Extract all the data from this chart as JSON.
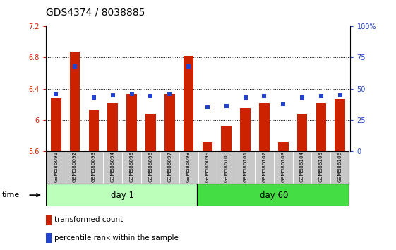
{
  "title": "GDS4374 / 8038885",
  "samples": [
    "GSM586091",
    "GSM586092",
    "GSM586093",
    "GSM586094",
    "GSM586095",
    "GSM586096",
    "GSM586097",
    "GSM586098",
    "GSM586099",
    "GSM586100",
    "GSM586101",
    "GSM586102",
    "GSM586103",
    "GSM586104",
    "GSM586105",
    "GSM586106"
  ],
  "transformed_count": [
    6.28,
    6.88,
    6.13,
    6.22,
    6.33,
    6.08,
    6.33,
    6.82,
    5.72,
    5.93,
    6.15,
    6.22,
    5.72,
    6.08,
    6.22,
    6.27
  ],
  "percentile_rank": [
    46,
    68,
    43,
    45,
    46,
    44,
    46,
    68,
    35,
    36,
    43,
    44,
    38,
    43,
    44,
    45
  ],
  "ylim_left": [
    5.6,
    7.2
  ],
  "ylim_right": [
    0,
    100
  ],
  "yticks_left": [
    5.6,
    6.0,
    6.4,
    6.8,
    7.2
  ],
  "ytick_labels_left": [
    "5.6",
    "6",
    "6.4",
    "6.8",
    "7.2"
  ],
  "yticks_right": [
    0,
    25,
    50,
    75,
    100
  ],
  "ytick_labels_right": [
    "0",
    "25",
    "50",
    "75",
    "100%"
  ],
  "bar_color": "#cc2200",
  "dot_color": "#2244cc",
  "bar_bottom": 5.6,
  "grid_yticks": [
    6.0,
    6.4,
    6.8
  ],
  "day1_samples": 8,
  "day60_samples": 8,
  "day1_label": "day 1",
  "day60_label": "day 60",
  "group_bg_day1": "#bbffbb",
  "group_bg_day60": "#44dd44",
  "xlabel_time": "time",
  "legend_bar_label": "transformed count",
  "legend_dot_label": "percentile rank within the sample",
  "title_fontsize": 10,
  "tick_fontsize": 7,
  "axis_color_left": "#cc2200",
  "axis_color_right": "#2244cc",
  "tick_bg_color": "#c8c8c8",
  "bar_width": 0.55
}
